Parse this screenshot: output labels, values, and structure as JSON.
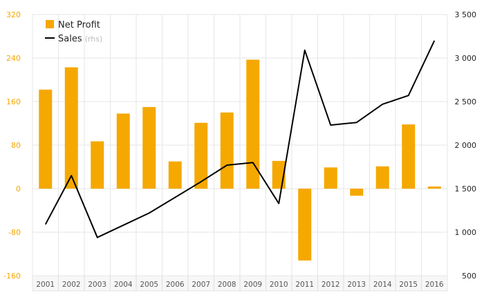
{
  "chart_data": {
    "type": "bar",
    "categories": [
      "2001",
      "2002",
      "2003",
      "2004",
      "2005",
      "2006",
      "2007",
      "2008",
      "2009",
      "2010",
      "2011",
      "2012",
      "2013",
      "2014",
      "2015",
      "2016"
    ],
    "series": [
      {
        "name": "Net Profit",
        "type": "bar",
        "axis": "left",
        "color": "#f5a800",
        "values": [
          182,
          223,
          87,
          138,
          150,
          50,
          121,
          140,
          237,
          51,
          -132,
          39,
          -13,
          41,
          118,
          4
        ]
      },
      {
        "name": "Sales",
        "suffix": "(rhs)",
        "type": "line",
        "axis": "right",
        "color": "#000000",
        "values": [
          1090,
          1650,
          940,
          1080,
          1220,
          1400,
          1580,
          1770,
          1800,
          1330,
          3090,
          2230,
          2260,
          2470,
          2570,
          3200
        ]
      }
    ],
    "left_axis": {
      "range": [
        -160,
        320
      ],
      "ticks": [
        "320",
        "240",
        "160",
        "80",
        "0",
        "-80",
        "-160"
      ],
      "color": "#f5a800"
    },
    "right_axis": {
      "range": [
        500,
        3500
      ],
      "ticks": [
        "3 500",
        "3 000",
        "2 500",
        "2 000",
        "1 500",
        "1 000",
        "500"
      ],
      "color": "#222222"
    },
    "grid": true,
    "legend": "top-left",
    "legend_suffix_color": "#bbbbbb"
  }
}
